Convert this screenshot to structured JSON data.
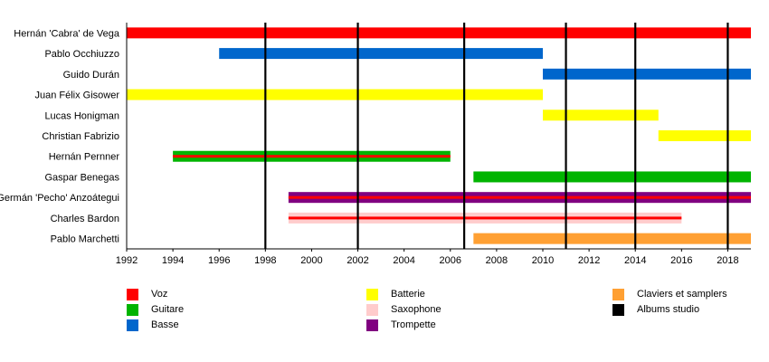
{
  "chart_data": {
    "type": "timeline",
    "members": [
      {
        "name": "Hernán 'Cabra' de Vega",
        "start": 1992,
        "end": 2019,
        "roles": [
          "Voz"
        ]
      },
      {
        "name": "Pablo Occhiuzzo",
        "start": 1996,
        "end": 2010,
        "roles": [
          "Basse"
        ]
      },
      {
        "name": "Guido Durán",
        "start": 2010,
        "end": 2019,
        "roles": [
          "Basse"
        ]
      },
      {
        "name": "Juan Félix Gisower",
        "start": 1992,
        "end": 2010,
        "roles": [
          "Batterie"
        ]
      },
      {
        "name": "Lucas Honigman",
        "start": 2010,
        "end": 2015,
        "roles": [
          "Batterie"
        ]
      },
      {
        "name": "Christian Fabrizio",
        "start": 2015,
        "end": 2019,
        "roles": [
          "Batterie"
        ]
      },
      {
        "name": "Hernán Pernner",
        "start": 1994,
        "end": 2006,
        "roles": [
          "Guitare",
          "Voz"
        ]
      },
      {
        "name": "Gaspar Benegas",
        "start": 2007,
        "end": 2019,
        "roles": [
          "Guitare"
        ]
      },
      {
        "name": "Germán 'Pecho' Anzoátegui",
        "start": 1999,
        "end": 2019,
        "roles": [
          "Trompette",
          "Voz"
        ]
      },
      {
        "name": "Charles Bardon",
        "start": 1999,
        "end": 2016,
        "roles": [
          "Saxophone",
          "Voz"
        ]
      },
      {
        "name": "Pablo Marchetti",
        "start": 2007,
        "end": 2019,
        "roles": [
          "Claviers et samplers"
        ]
      }
    ],
    "albums": [
      1998,
      2002,
      2006.6,
      2011,
      2014,
      2018
    ],
    "x_range": [
      1992,
      2019
    ],
    "x_ticks": [
      "1992",
      "1994",
      "1996",
      "1998",
      "2000",
      "2002",
      "2004",
      "2006",
      "2008",
      "2010",
      "2012",
      "2014",
      "2016",
      "2018"
    ],
    "legend": [
      {
        "label": "Voz",
        "color": "#ff0000"
      },
      {
        "label": "Guitare",
        "color": "#00b400"
      },
      {
        "label": "Basse",
        "color": "#0066cc"
      },
      {
        "label": "Batterie",
        "color": "#ffff00"
      },
      {
        "label": "Saxophone",
        "color": "#ffcccc"
      },
      {
        "label": "Trompette",
        "color": "#800080"
      },
      {
        "label": "Claviers et samplers",
        "color": "#ffa033"
      },
      {
        "label": "Albums studio",
        "color": "#000000"
      }
    ],
    "legend_placement": "bottom",
    "colors": {
      "Voz": "#ff0000",
      "Guitare": "#00b400",
      "Basse": "#0066cc",
      "Batterie": "#ffff00",
      "Saxophone": "#ffcccc",
      "Trompette": "#800080",
      "Claviers et samplers": "#ffa033"
    }
  }
}
